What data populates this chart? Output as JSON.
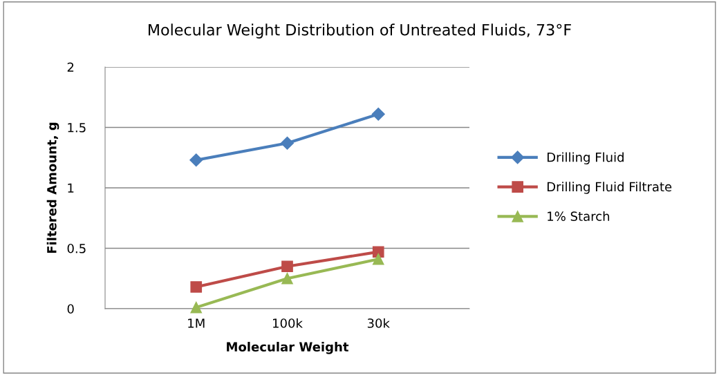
{
  "chart_data": {
    "type": "line",
    "title": "Molecular Weight Distribution of Untreated Fluids, 73°F",
    "xlabel": "Molecular Weight",
    "ylabel": "Filtered Amount, g",
    "categories": [
      null,
      "1M",
      "100k",
      "30k",
      null
    ],
    "series": [
      {
        "name": "Drilling Fluid",
        "color": "#4a7ebb",
        "marker": "diamond",
        "values": [
          null,
          1.23,
          1.37,
          1.61,
          null
        ]
      },
      {
        "name": "Drilling Fluid Filtrate",
        "color": "#be4b48",
        "marker": "square",
        "values": [
          null,
          0.18,
          0.35,
          0.47,
          null
        ]
      },
      {
        "name": "1% Starch",
        "color": "#98b954",
        "marker": "triangle",
        "values": [
          null,
          0.01,
          0.25,
          0.41,
          null
        ]
      }
    ],
    "ylim": [
      0,
      2
    ],
    "yticks": [
      0,
      0.5,
      1,
      1.5,
      2
    ],
    "grid": "y",
    "legend": "right"
  }
}
